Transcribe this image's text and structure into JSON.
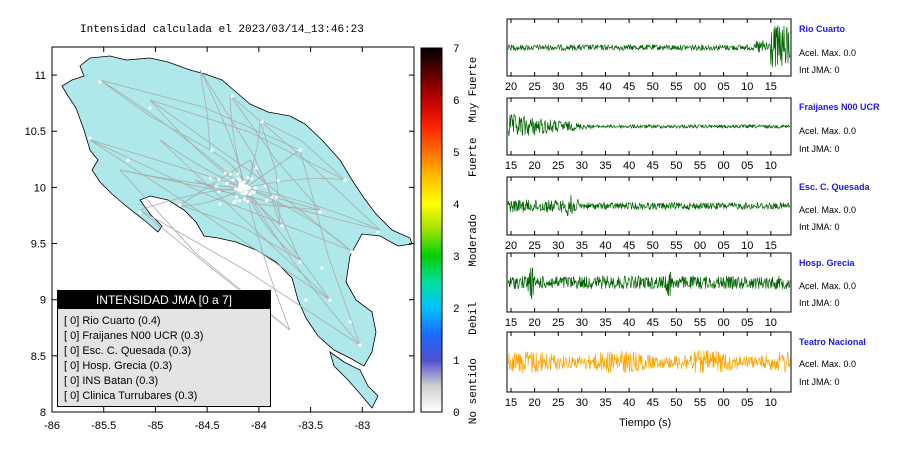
{
  "map": {
    "title": "Intensidad calculada el 2023/03/14_13:46:23",
    "x_ticks": [
      "-86",
      "-85.5",
      "-85",
      "-84.5",
      "-84",
      "-83.5",
      "-83"
    ],
    "y_ticks": [
      "11",
      "10.5",
      "10",
      "9.5",
      "9",
      "8.5",
      "8"
    ]
  },
  "scale": {
    "ticks": [
      "7",
      "6",
      "5",
      "4",
      "3",
      "2",
      "1",
      "0"
    ],
    "levels": [
      "Muy Fuerte",
      "Fuerte",
      "Moderado",
      "Debil",
      "No sentido"
    ],
    "colors": [
      "#ffffff",
      "#d0d0d0",
      "#5050d0",
      "#1a6cff",
      "#00c0ff",
      "#00e0a0",
      "#00d000",
      "#a0e000",
      "#ffff00",
      "#ffc000",
      "#ff7000",
      "#ff2000",
      "#c00000",
      "#600000",
      "#000000"
    ]
  },
  "legend": {
    "header": "INTENSIDAD JMA [0 a 7]",
    "items": [
      "[ 0] Rio Cuarto (0.4)",
      "[ 0] Fraijanes N00 UCR (0.3)",
      "[ 0] Esc. C. Quesada (0.3)",
      "[ 0] Hosp. Grecia (0.3)",
      "[ 0] INS Batan (0.3)",
      "[ 0] Clinica Turrubares (0.3)"
    ]
  },
  "stations": [
    {
      "name": "Rio Cuarto",
      "accel": "Acel. Max. 0.0",
      "jma": "Int JMA: 0",
      "color": "#006400",
      "ticks": [
        "20",
        "25",
        "30",
        "35",
        "40",
        "45",
        "50",
        "55",
        "00",
        "05",
        "10",
        "15"
      ]
    },
    {
      "name": "Fraijanes N00 UCR",
      "accel": "Acel. Max. 0.0",
      "jma": "Int JMA: 0",
      "color": "#006400",
      "ticks": [
        "15",
        "20",
        "25",
        "30",
        "35",
        "40",
        "45",
        "50",
        "55",
        "00",
        "05",
        "10"
      ]
    },
    {
      "name": "Esc. C. Quesada",
      "accel": "Acel. Max. 0.0",
      "jma": "Int JMA: 0",
      "color": "#006400",
      "ticks": [
        "20",
        "25",
        "30",
        "35",
        "40",
        "45",
        "50",
        "55",
        "00",
        "05",
        "10",
        "15"
      ]
    },
    {
      "name": "Hosp. Grecia",
      "accel": "Acel. Max. 0.0",
      "jma": "Int JMA: 0",
      "color": "#006400",
      "ticks": [
        "15",
        "20",
        "25",
        "30",
        "35",
        "40",
        "45",
        "50",
        "55",
        "00",
        "05",
        "10"
      ]
    },
    {
      "name": "Teatro Nacional",
      "accel": "Acel. Max. 0.0",
      "jma": "Int JMA: 0",
      "color": "#ffa500",
      "ticks": [
        "15",
        "20",
        "25",
        "30",
        "35",
        "40",
        "45",
        "50",
        "55",
        "00",
        "05",
        "10"
      ]
    }
  ],
  "xlabel": "Tiempo (s)",
  "chart_data": [
    {
      "type": "map",
      "title": "Intensidad calculada el 2023/03/14_13:46:23",
      "xlim": [
        -86,
        -82.5
      ],
      "ylim": [
        8,
        11.25
      ],
      "colorbar": {
        "range": [
          0,
          7
        ],
        "labels": [
          "No sentido",
          "Debil",
          "Moderado",
          "Fuerte",
          "Muy Fuerte"
        ]
      },
      "legend_title": "INTENSIDAD JMA [0 a 7]",
      "legend_placement": "bottom-left"
    },
    {
      "type": "line",
      "description": "acceleration waveforms",
      "series": [
        {
          "name": "Rio Cuarto",
          "acel_max": 0.0,
          "int_jma": 0
        },
        {
          "name": "Fraijanes N00 UCR",
          "acel_max": 0.0,
          "int_jma": 0
        },
        {
          "name": "Esc. C. Quesada",
          "acel_max": 0.0,
          "int_jma": 0
        },
        {
          "name": "Hosp. Grecia",
          "acel_max": 0.0,
          "int_jma": 0
        },
        {
          "name": "Teatro Nacional",
          "acel_max": 0.0,
          "int_jma": 0
        }
      ],
      "xlabel": "Tiempo (s)"
    }
  ]
}
